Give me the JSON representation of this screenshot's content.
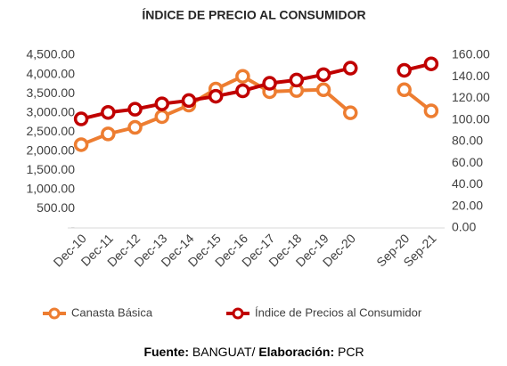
{
  "chart_data": {
    "type": "line",
    "title": "ÍNDICE DE PRECIO AL CONSUMIDOR",
    "categories": [
      "Dec-10",
      "Dec-11",
      "Dec-12",
      "Dec-13",
      "Dec-14",
      "Dec-15",
      "Dec-16",
      "Dec-17",
      "Dec-18",
      "Dec-19",
      "Dec-20",
      null,
      "Sep-20",
      "Sep-21"
    ],
    "series": [
      {
        "name": "Canasta Básica",
        "color": "#ED7D31",
        "values": [
          2170,
          2450,
          2620,
          2900,
          3200,
          3620,
          3950,
          3550,
          3580,
          3600,
          3000,
          null,
          3600,
          3050
        ]
      },
      {
        "name": "Índice de Precios al Consumidor",
        "color": "#C00000",
        "axis": "y2",
        "values": [
          101,
          107,
          110,
          115,
          118,
          122,
          127,
          134,
          137,
          142,
          148,
          null,
          146,
          152
        ]
      }
    ],
    "ylim": [
      0,
      4500
    ],
    "yticks": [
      {
        "value": 0,
        "label": "-"
      },
      {
        "value": 500,
        "label": "500.00"
      },
      {
        "value": 1000,
        "label": "1,000.00"
      },
      {
        "value": 1500,
        "label": "1,500.00"
      },
      {
        "value": 2000,
        "label": "2,000.00"
      },
      {
        "value": 2500,
        "label": "2,500.00"
      },
      {
        "value": 3000,
        "label": "3,000.00"
      },
      {
        "value": 3500,
        "label": "3,500.00"
      },
      {
        "value": 4000,
        "label": "4,000.00"
      },
      {
        "value": 4500,
        "label": "4,500.00"
      }
    ],
    "y2lim": [
      0,
      160
    ],
    "y2ticks": [
      {
        "value": 0,
        "label": "0.00"
      },
      {
        "value": 20,
        "label": "20.00"
      },
      {
        "value": 40,
        "label": "40.00"
      },
      {
        "value": 60,
        "label": "60.00"
      },
      {
        "value": 80,
        "label": "80.00"
      },
      {
        "value": 100,
        "label": "100.00"
      },
      {
        "value": 120,
        "label": "120.00"
      },
      {
        "value": 140,
        "label": "140.00"
      },
      {
        "value": 160,
        "label": "160.00"
      }
    ],
    "grid": false,
    "legend": "bottom",
    "source": [
      "Fuente:",
      " BANGUAT/ ",
      "Elaboración:",
      " PCR"
    ]
  }
}
